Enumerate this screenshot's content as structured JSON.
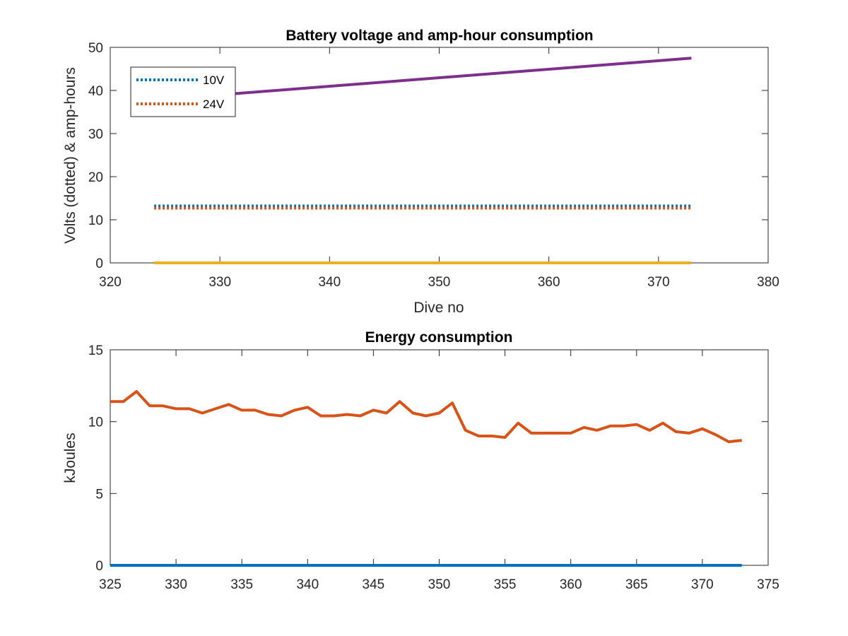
{
  "chart_data": [
    {
      "type": "line",
      "title": "Battery voltage and amp-hour consumption",
      "xlabel": "Dive no",
      "ylabel": "Volts (dotted) & amp-hours",
      "xlim": [
        320,
        380
      ],
      "ylim": [
        0,
        50
      ],
      "xticks": [
        320,
        330,
        340,
        350,
        360,
        370,
        380
      ],
      "yticks": [
        0,
        10,
        20,
        30,
        40,
        50
      ],
      "grid": false,
      "legend": {
        "position": "top-left",
        "entries": [
          "10V",
          "24V"
        ]
      },
      "series": [
        {
          "name": "10V",
          "style": "dotted",
          "color": "#0072BD",
          "x": [
            324,
            373
          ],
          "y": [
            13.2,
            13.2
          ]
        },
        {
          "name": "24V",
          "style": "dotted",
          "color": "#D95319",
          "x": [
            324,
            373
          ],
          "y": [
            12.7,
            12.7
          ]
        },
        {
          "style": "solid",
          "color": "#EDB120",
          "x": [
            324,
            373
          ],
          "y": [
            0,
            0
          ]
        },
        {
          "style": "solid",
          "color": "#7E2F8E",
          "x": [
            324,
            373
          ],
          "y": [
            37.8,
            47.5
          ]
        }
      ]
    },
    {
      "type": "line",
      "title": "Energy consumption",
      "xlabel": "",
      "ylabel": "kJoules",
      "xlim": [
        325,
        375
      ],
      "ylim": [
        0,
        15
      ],
      "xticks": [
        325,
        330,
        335,
        340,
        345,
        350,
        355,
        360,
        365,
        370,
        375
      ],
      "yticks": [
        0,
        5,
        10,
        15
      ],
      "grid": false,
      "series": [
        {
          "style": "solid",
          "color": "#0072BD",
          "x": [
            325,
            373
          ],
          "y": [
            0,
            0
          ]
        },
        {
          "style": "solid",
          "color": "#D95319",
          "x": [
            325,
            326,
            327,
            328,
            329,
            330,
            331,
            332,
            333,
            334,
            335,
            336,
            337,
            338,
            339,
            340,
            341,
            342,
            343,
            344,
            345,
            346,
            347,
            348,
            349,
            350,
            351,
            352,
            353,
            354,
            355,
            356,
            357,
            358,
            359,
            360,
            361,
            362,
            363,
            364,
            365,
            366,
            367,
            368,
            369,
            370,
            371,
            372,
            373
          ],
          "y": [
            11.4,
            11.4,
            12.1,
            11.1,
            11.1,
            10.9,
            10.9,
            10.6,
            10.9,
            11.2,
            10.8,
            10.8,
            10.5,
            10.4,
            10.8,
            11.0,
            10.4,
            10.4,
            10.5,
            10.4,
            10.8,
            10.6,
            11.4,
            10.6,
            10.4,
            10.6,
            11.3,
            9.4,
            9.0,
            9.0,
            8.9,
            9.9,
            9.2,
            9.2,
            9.2,
            9.2,
            9.6,
            9.4,
            9.7,
            9.7,
            9.8,
            9.4,
            9.9,
            9.3,
            9.2,
            9.5,
            9.1,
            8.6,
            8.7
          ]
        }
      ]
    }
  ]
}
